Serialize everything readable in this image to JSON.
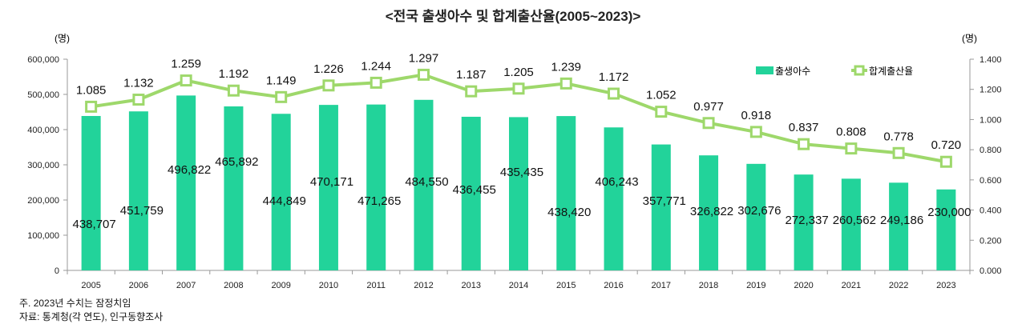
{
  "chart_data": {
    "type": "bar+line",
    "title": "<전국 출생아수 및 합계출산율(2005~2023)>",
    "left_unit": "(명)",
    "right_unit": "(명)",
    "categories": [
      "2005",
      "2006",
      "2007",
      "2008",
      "2009",
      "2010",
      "2011",
      "2012",
      "2013",
      "2014",
      "2015",
      "2016",
      "2017",
      "2018",
      "2019",
      "2020",
      "2021",
      "2022",
      "2023"
    ],
    "series": [
      {
        "name": "출생아수",
        "type": "bar",
        "axis": "left",
        "color": "#22d39a",
        "values": [
          438707,
          451759,
          496822,
          465892,
          444849,
          470171,
          471265,
          484550,
          436455,
          435435,
          438420,
          406243,
          357771,
          326822,
          302676,
          272337,
          260562,
          249186,
          230000
        ],
        "labels": [
          "438,707",
          "451,759",
          "496,822",
          "465,892",
          "444,849",
          "470,171",
          "471,265",
          "484,550",
          "436,455",
          "435,435",
          "438,420",
          "406,243",
          "357,771",
          "326,822",
          "302,676",
          "272,337",
          "260,562",
          "249,186",
          "230,000"
        ]
      },
      {
        "name": "합계출산율",
        "type": "line",
        "axis": "right",
        "color": "#9ed86b",
        "values": [
          1.085,
          1.132,
          1.259,
          1.192,
          1.149,
          1.226,
          1.244,
          1.297,
          1.187,
          1.205,
          1.239,
          1.172,
          1.052,
          0.977,
          0.918,
          0.837,
          0.808,
          0.778,
          0.72
        ],
        "labels": [
          "1.085",
          "1.132",
          "1.259",
          "1.192",
          "1.149",
          "1.226",
          "1.244",
          "1.297",
          "1.187",
          "1.205",
          "1.239",
          "1.172",
          "1.052",
          "0.977",
          "0.918",
          "0.837",
          "0.808",
          "0.778",
          "0.720"
        ]
      }
    ],
    "left_axis": {
      "ylim": [
        0,
        600000
      ],
      "ticks": [
        "0",
        "100,000",
        "200,000",
        "300,000",
        "400,000",
        "500,000",
        "600,000"
      ]
    },
    "right_axis": {
      "ylim": [
        0,
        1.4
      ],
      "ticks": [
        "0.000",
        "0.200",
        "0.400",
        "0.600",
        "0.800",
        "1.000",
        "1.200",
        "1.400"
      ]
    },
    "legend": "top-right",
    "grid": false
  },
  "notes": {
    "line1": "주. 2023년 수치는 잠정치임",
    "line2": "자료: 통계청(각 연도), 인구동향조사"
  }
}
